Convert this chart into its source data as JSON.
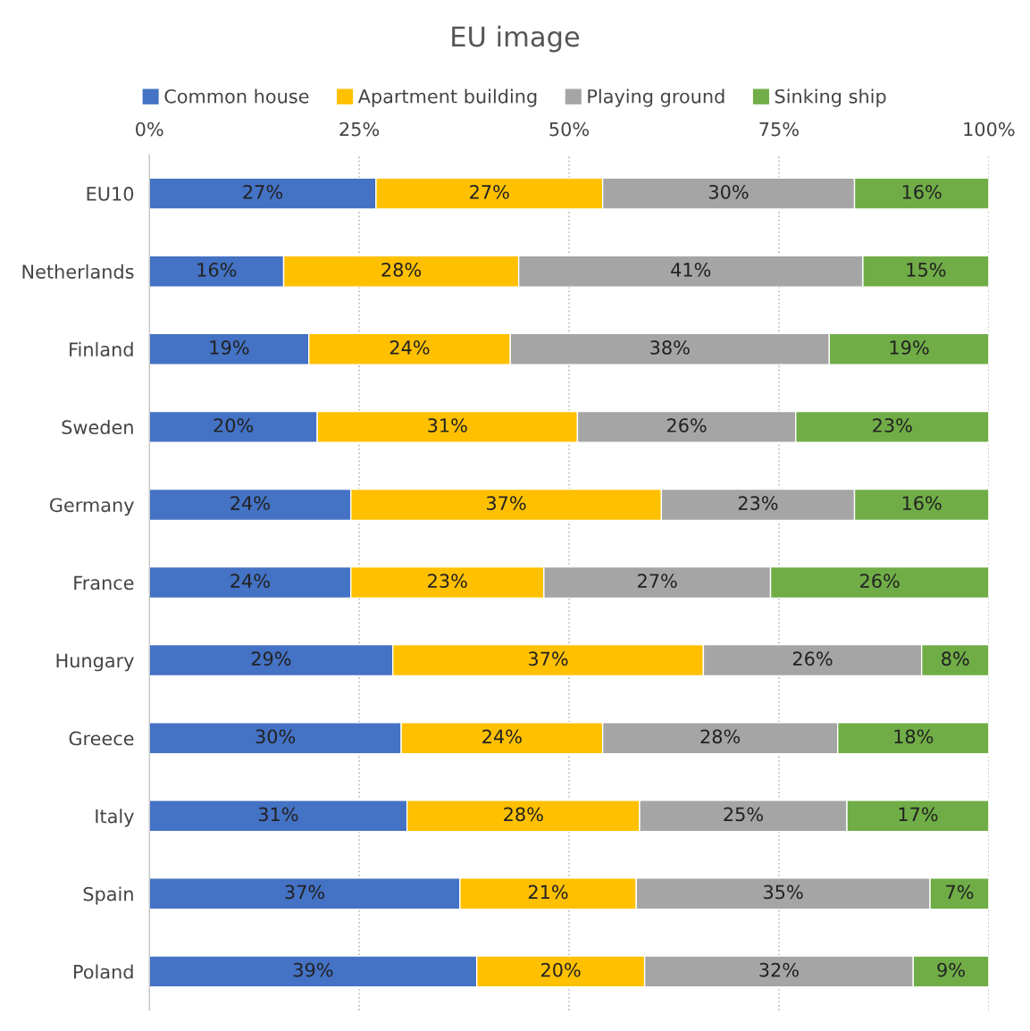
{
  "chart_data": {
    "type": "bar",
    "orientation": "horizontal",
    "stacked": true,
    "title": "EU image",
    "categories": [
      "EU10",
      "Netherlands",
      "Finland",
      "Sweden",
      "Germany",
      "France",
      "Hungary",
      "Greece",
      "Italy",
      "Spain",
      "Poland"
    ],
    "series": [
      {
        "name": "Common house",
        "color": "#4472c4",
        "values": [
          27,
          16,
          19,
          20,
          24,
          24,
          29,
          30,
          30.7,
          37,
          39
        ],
        "value_labels": [
          "27%",
          "16%",
          "19%",
          "20%",
          "24%",
          "24%",
          "29%",
          "30%",
          "31%",
          "37%",
          "39%"
        ]
      },
      {
        "name": "Apartment building",
        "color": "#ffc000",
        "values": [
          27,
          28,
          24,
          31,
          37,
          23,
          37,
          24,
          27.7,
          21,
          20
        ],
        "value_labels": [
          "27%",
          "28%",
          "24%",
          "31%",
          "37%",
          "23%",
          "37%",
          "24%",
          "28%",
          "21%",
          "20%"
        ]
      },
      {
        "name": "Playing ground",
        "color": "#a5a5a5",
        "values": [
          30,
          41,
          38,
          26,
          23,
          27,
          26,
          28,
          24.7,
          35,
          32
        ],
        "value_labels": [
          "30%",
          "41%",
          "38%",
          "26%",
          "23%",
          "27%",
          "26%",
          "28%",
          "25%",
          "35%",
          "32%"
        ]
      },
      {
        "name": "Sinking ship",
        "color": "#70ad47",
        "values": [
          16,
          15,
          19,
          23,
          16,
          26,
          8,
          18,
          16.9,
          7,
          9
        ],
        "value_labels": [
          "16%",
          "15%",
          "19%",
          "23%",
          "16%",
          "26%",
          "8%",
          "18%",
          "17%",
          "7%",
          "9%"
        ]
      }
    ],
    "xlim": [
      0,
      100
    ],
    "xticks": [
      {
        "value": 0,
        "label": "0%"
      },
      {
        "value": 25,
        "label": "25%"
      },
      {
        "value": 50,
        "label": "50%"
      },
      {
        "value": 75,
        "label": "75%"
      },
      {
        "value": 100,
        "label": "100%"
      }
    ],
    "grid": "x",
    "legend": "top"
  }
}
